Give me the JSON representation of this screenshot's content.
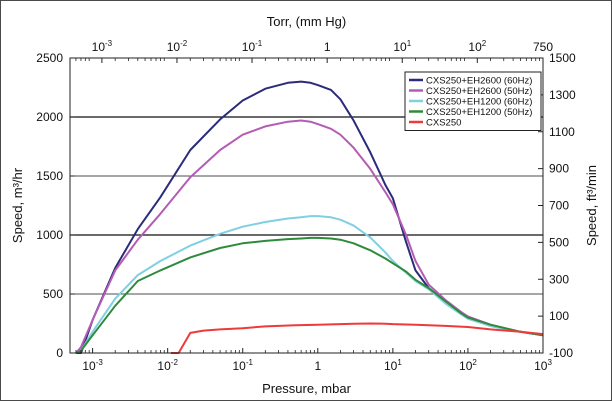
{
  "chart_data": {
    "type": "line",
    "xlabel": "Pressure, mbar",
    "x2label": "Torr, (mm Hg)",
    "ylabel": "Speed, m³/hr",
    "y2label": "Speed, ft³/min",
    "x_scale": "log",
    "xlim": [
      0.0005,
      1000
    ],
    "ylim": [
      0,
      2500
    ],
    "grid": "horizontal at 1000 and 2000 (bold), 500/1500 (thin)",
    "legend_position": "top-right",
    "x_ticks": [
      {
        "base": "10",
        "exp": "-3"
      },
      {
        "base": "10",
        "exp": "-2"
      },
      {
        "base": "10",
        "exp": "-1"
      },
      {
        "base": "1",
        "exp": ""
      },
      {
        "base": "10",
        "exp": "1"
      },
      {
        "base": "10",
        "exp": "2"
      },
      {
        "base": "10",
        "exp": "3"
      }
    ],
    "x_tick_values": [
      0.001,
      0.01,
      0.1,
      1,
      10,
      100,
      1000
    ],
    "top_ticks": [
      {
        "base": "10",
        "exp": "-3"
      },
      {
        "base": "10",
        "exp": "-2"
      },
      {
        "base": "10",
        "exp": "-1"
      },
      {
        "base": "1",
        "exp": ""
      },
      {
        "base": "10",
        "exp": "1"
      },
      {
        "base": "10",
        "exp": "2"
      },
      {
        "base": "750",
        "exp": ""
      }
    ],
    "top_tick_mbar": [
      0.00133,
      0.0133,
      0.133,
      1.333,
      13.33,
      133.3,
      1000
    ],
    "y_ticks": [
      "0",
      "500",
      "1000",
      "1500",
      "2000",
      "2500"
    ],
    "y_tick_values": [
      0,
      500,
      1000,
      1500,
      2000,
      2500
    ],
    "y2_ticks": [
      "-100",
      "100",
      "300",
      "500",
      "700",
      "900",
      "1100",
      "1300",
      "1500"
    ],
    "y2_tick_values": [
      -100,
      100,
      300,
      500,
      700,
      900,
      1100,
      1300,
      1500
    ],
    "y2_range": [
      -100,
      1500
    ],
    "series": [
      {
        "name": "CXS250+EH2600 (60Hz)",
        "color": "#2b2b7a",
        "x": [
          0.0006,
          0.0007,
          0.001,
          0.002,
          0.004,
          0.008,
          0.02,
          0.05,
          0.1,
          0.2,
          0.4,
          0.6,
          0.8,
          1.0,
          1.5,
          2,
          3,
          5,
          8,
          10,
          15,
          20,
          30,
          50,
          80,
          100,
          200,
          500,
          1000
        ],
        "y": [
          0,
          0,
          280,
          720,
          1050,
          1320,
          1720,
          1980,
          2140,
          2240,
          2290,
          2300,
          2290,
          2270,
          2230,
          2150,
          1970,
          1700,
          1420,
          1310,
          940,
          700,
          550,
          440,
          340,
          300,
          230,
          180,
          150
        ]
      },
      {
        "name": "CXS250+EH2600 (50Hz)",
        "color": "#b45cb4",
        "x": [
          0.0006,
          0.0007,
          0.001,
          0.002,
          0.004,
          0.008,
          0.02,
          0.05,
          0.1,
          0.2,
          0.4,
          0.6,
          0.8,
          1.0,
          1.5,
          2,
          3,
          5,
          8,
          10,
          15,
          20,
          30,
          50,
          80,
          100,
          200,
          500,
          1000
        ],
        "y": [
          0,
          50,
          280,
          700,
          960,
          1180,
          1490,
          1720,
          1850,
          1920,
          1960,
          1970,
          1960,
          1940,
          1900,
          1850,
          1740,
          1560,
          1360,
          1260,
          1000,
          780,
          580,
          450,
          350,
          310,
          240,
          180,
          150
        ]
      },
      {
        "name": "CXS250+EH1200 (60Hz)",
        "color": "#7fd0e0",
        "x": [
          0.0006,
          0.0007,
          0.001,
          0.002,
          0.004,
          0.008,
          0.02,
          0.05,
          0.1,
          0.2,
          0.4,
          0.6,
          0.8,
          1.0,
          1.5,
          2,
          3,
          5,
          8,
          10,
          15,
          20,
          30,
          50,
          80,
          100,
          200,
          500,
          1000
        ],
        "y": [
          0,
          20,
          180,
          460,
          660,
          780,
          910,
          1010,
          1070,
          1110,
          1140,
          1150,
          1160,
          1160,
          1150,
          1130,
          1080,
          980,
          850,
          780,
          680,
          610,
          540,
          420,
          330,
          290,
          230,
          180,
          150
        ]
      },
      {
        "name": "CXS250+EH1200 (50Hz)",
        "color": "#2f8a3c",
        "x": [
          0.0006,
          0.0007,
          0.001,
          0.002,
          0.004,
          0.008,
          0.02,
          0.05,
          0.1,
          0.2,
          0.4,
          0.6,
          0.8,
          1.0,
          1.5,
          2,
          3,
          5,
          8,
          10,
          15,
          20,
          30,
          50,
          80,
          100,
          200,
          500,
          1000
        ],
        "y": [
          0,
          20,
          150,
          400,
          610,
          700,
          810,
          890,
          930,
          950,
          965,
          970,
          975,
          975,
          970,
          960,
          930,
          870,
          800,
          760,
          690,
          620,
          550,
          440,
          340,
          300,
          240,
          180,
          150
        ]
      },
      {
        "name": "CXS250",
        "color": "#ee3a3a",
        "x": [
          0.011,
          0.014,
          0.02,
          0.03,
          0.05,
          0.1,
          0.2,
          0.5,
          1,
          2,
          3,
          5,
          8,
          10,
          20,
          50,
          100,
          200,
          500,
          1000
        ],
        "y": [
          0,
          0,
          170,
          190,
          200,
          210,
          225,
          235,
          240,
          245,
          248,
          250,
          248,
          245,
          240,
          230,
          220,
          200,
          180,
          160
        ]
      }
    ]
  }
}
